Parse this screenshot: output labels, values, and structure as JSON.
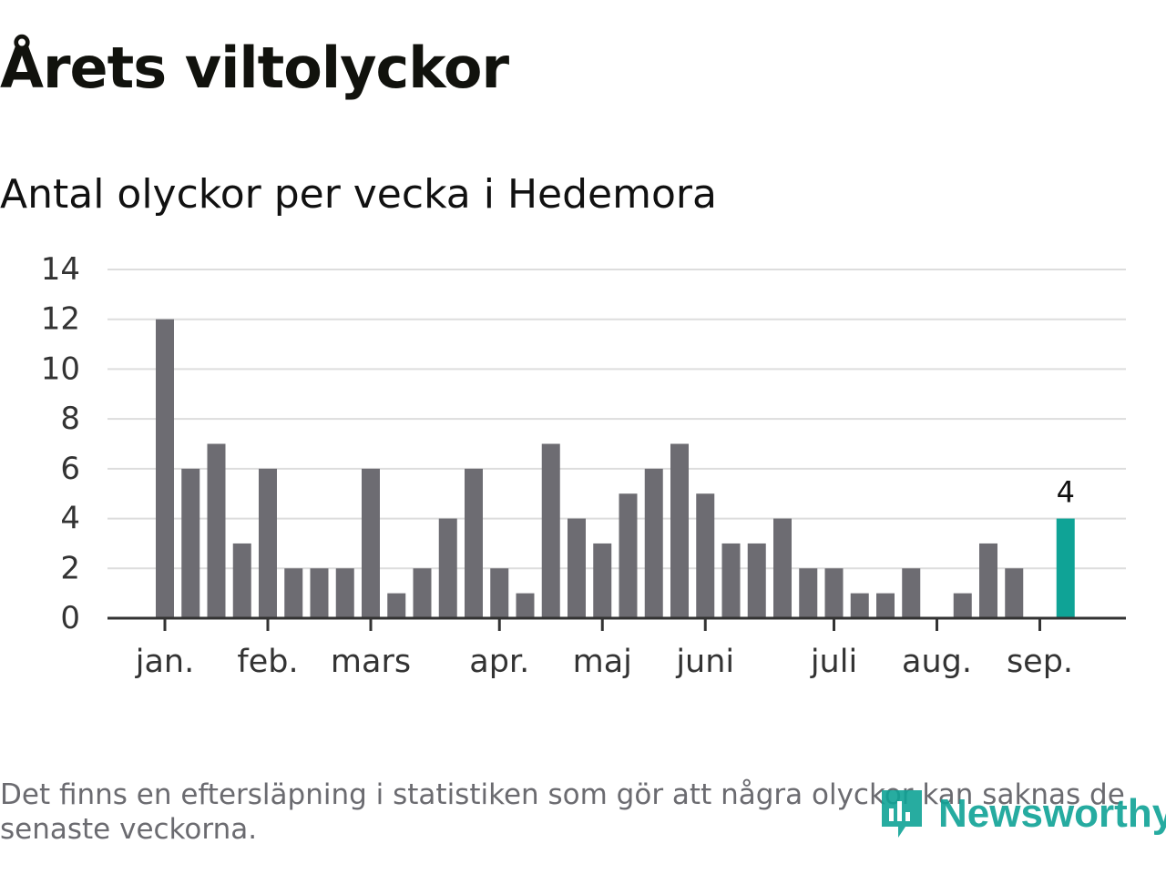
{
  "header": {
    "title": "Årets viltolyckor",
    "subtitle": "Antal olyckor per vecka i Hedemora"
  },
  "footer": {
    "note": "Det finns en eftersläpning i statistiken som gör att några olyckor kan saknas de senaste veckorna.",
    "brand": "Newsworthy"
  },
  "colors": {
    "bar": "#6d6c72",
    "highlight": "#0fa396",
    "grid": "#dddddd",
    "axis": "#333333",
    "text": "#333333"
  },
  "chart_data": {
    "type": "bar",
    "title": "Antal olyckor per vecka i Hedemora",
    "xlabel": "",
    "ylabel": "",
    "ylim": [
      0,
      14
    ],
    "yticks": [
      0,
      2,
      4,
      6,
      8,
      10,
      12,
      14
    ],
    "grid": true,
    "legend": "none",
    "x_tick_labels": [
      {
        "label": "jan.",
        "week": 1
      },
      {
        "label": "feb.",
        "week": 5
      },
      {
        "label": "mars",
        "week": 9
      },
      {
        "label": "apr.",
        "week": 14
      },
      {
        "label": "maj",
        "week": 18
      },
      {
        "label": "juni",
        "week": 22
      },
      {
        "label": "juli",
        "week": 27
      },
      {
        "label": "aug.",
        "week": 31
      },
      {
        "label": "sep.",
        "week": 35
      }
    ],
    "weeks": [
      1,
      2,
      3,
      4,
      5,
      6,
      7,
      8,
      9,
      10,
      11,
      12,
      13,
      14,
      15,
      16,
      17,
      18,
      19,
      20,
      21,
      22,
      23,
      24,
      25,
      26,
      27,
      28,
      29,
      30,
      31,
      32,
      33,
      34,
      35,
      36
    ],
    "values": [
      12,
      6,
      7,
      3,
      6,
      2,
      2,
      2,
      6,
      1,
      2,
      4,
      6,
      2,
      1,
      7,
      4,
      3,
      5,
      6,
      7,
      5,
      3,
      3,
      4,
      2,
      2,
      1,
      1,
      2,
      0,
      1,
      3,
      2,
      0,
      4
    ],
    "highlight_index": 35,
    "annotations": [
      {
        "week": 36,
        "text": "4"
      }
    ]
  }
}
